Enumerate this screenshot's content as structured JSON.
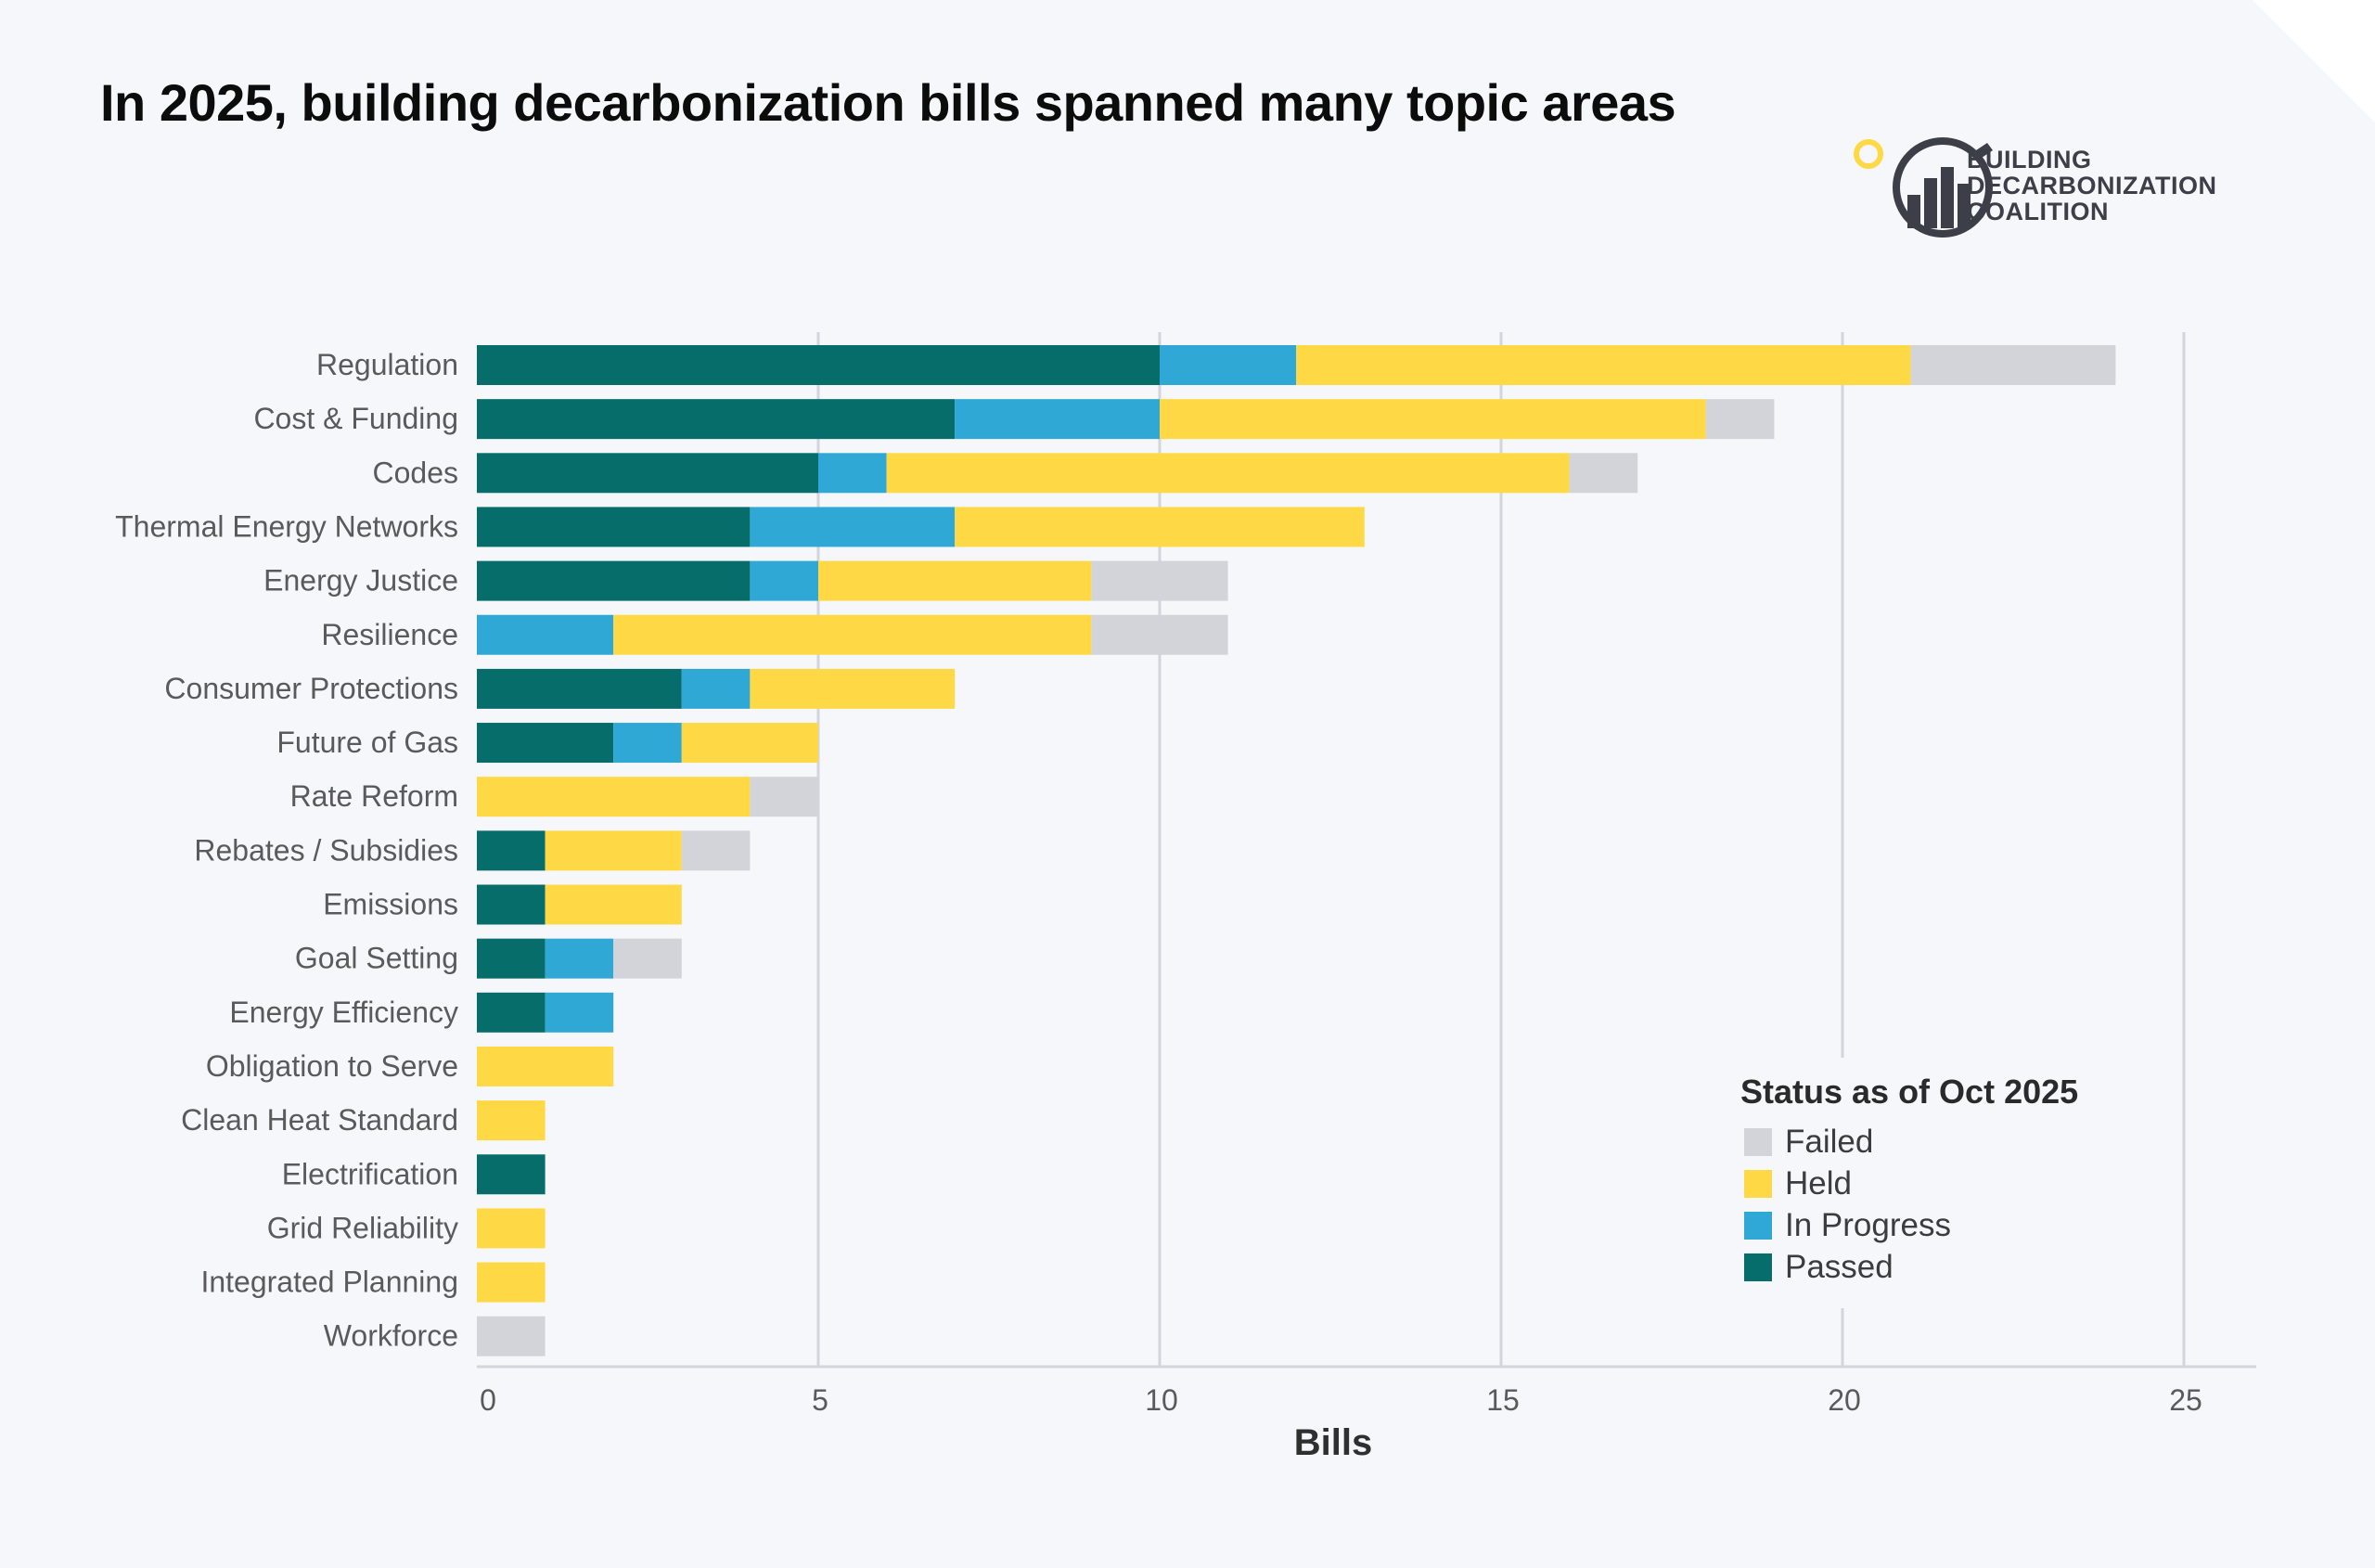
{
  "title": "In 2025, building decarbonization bills spanned many topic areas",
  "logo": {
    "icon": "building-decarbonization-logo-icon",
    "lines": [
      "BUILDING",
      "DECARBONIZATION",
      "COALITION"
    ]
  },
  "colors": {
    "Passed": "#066d6b",
    "In Progress": "#30a8d6",
    "Held": "#ffd945",
    "Failed": "#d3d4d9",
    "grid": "#d3d5dc",
    "label": "#5a5a5a"
  },
  "legend": {
    "title": "Status as of Oct 2025",
    "items": [
      "Failed",
      "Held",
      "In Progress",
      "Passed"
    ]
  },
  "chart_data": {
    "type": "bar",
    "orientation": "horizontal",
    "stacked": true,
    "xlabel": "Bills",
    "ylabel": "",
    "xlim": [
      0,
      26
    ],
    "xticks": [
      0,
      5,
      10,
      15,
      20,
      25
    ],
    "grid": true,
    "legend_position": "bottom-right",
    "categories": [
      "Regulation",
      "Cost & Funding",
      "Codes",
      "Thermal Energy Networks",
      "Energy Justice",
      "Resilience",
      "Consumer Protections",
      "Future of Gas",
      "Rate Reform",
      "Rebates / Subsidies",
      "Emissions",
      "Goal Setting",
      "Energy Efficiency",
      "Obligation to Serve",
      "Clean Heat Standard",
      "Electrification",
      "Grid Reliability",
      "Integrated Planning",
      "Workforce"
    ],
    "series": [
      {
        "name": "Passed",
        "values": [
          10,
          7,
          5,
          4,
          4,
          0,
          3,
          2,
          0,
          1,
          1,
          1,
          1,
          0,
          0,
          1,
          0,
          0,
          0
        ]
      },
      {
        "name": "In Progress",
        "values": [
          2,
          3,
          1,
          3,
          1,
          2,
          1,
          1,
          0,
          0,
          0,
          1,
          1,
          0,
          0,
          0,
          0,
          0,
          0
        ]
      },
      {
        "name": "Held",
        "values": [
          9,
          8,
          10,
          6,
          4,
          7,
          3,
          2,
          4,
          2,
          2,
          0,
          0,
          2,
          1,
          0,
          1,
          1,
          0
        ]
      },
      {
        "name": "Failed",
        "values": [
          3,
          1,
          1,
          0,
          2,
          2,
          0,
          0,
          1,
          1,
          0,
          1,
          0,
          0,
          0,
          0,
          0,
          0,
          1
        ]
      }
    ]
  }
}
